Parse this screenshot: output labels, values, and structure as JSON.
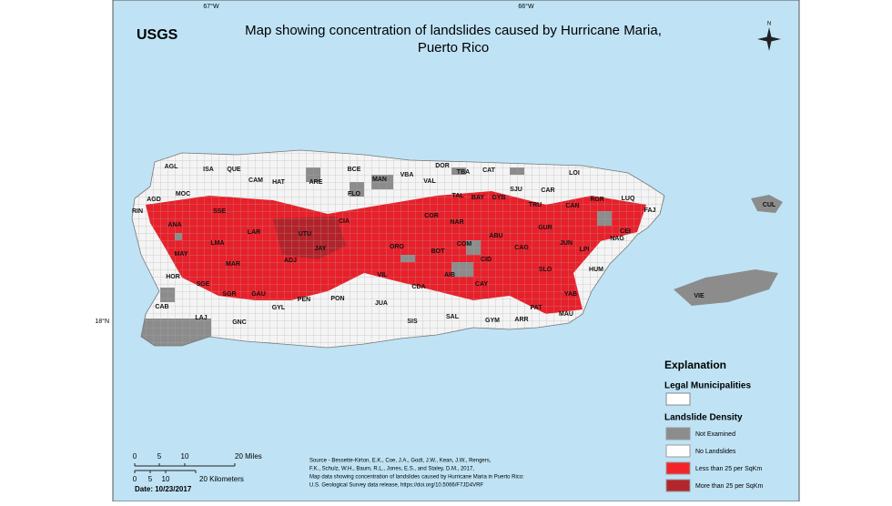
{
  "header": {
    "logo": "USGS",
    "title_line1": "Map showing concentration of landslides caused by Hurricane Maria,",
    "title_line2": "Puerto Rico"
  },
  "graticule": {
    "lon1": "67°W",
    "lon2": "66°W",
    "lat": "18°N"
  },
  "north": "N",
  "municipalities": [
    "AGL",
    "ISA",
    "QUE",
    "CAM",
    "HAT",
    "ARE",
    "BCE",
    "MAN",
    "VBA",
    "DOR",
    "TBA",
    "CAT",
    "LOI",
    "AGD",
    "MOC",
    "FLO",
    "VAL",
    "RIN",
    "ANA",
    "SSE",
    "LAR",
    "UTU",
    "CIA",
    "TAL",
    "BAY",
    "GYB",
    "SJU",
    "CAR",
    "TRU",
    "CAN",
    "RGR",
    "LUQ",
    "FAJ",
    "CUL",
    "COR",
    "NAR",
    "GUR",
    "NAG",
    "CEI",
    "LMA",
    "MAY",
    "JAY",
    "ORO",
    "BOT",
    "COM",
    "ABU",
    "JUN",
    "LPI",
    "CAG",
    "MAR",
    "ADJ",
    "CID",
    "SLO",
    "HUM",
    "HOR",
    "SGE",
    "VIL",
    "AIB",
    "CDA",
    "CAY",
    "VIE",
    "SGR",
    "GAU",
    "PEN",
    "PON",
    "JUA",
    "YAB",
    "PAT",
    "MAU",
    "CAB",
    "GYL",
    "LAJ",
    "GNC",
    "SIS",
    "SAL",
    "GYM",
    "ARR"
  ],
  "legend": {
    "title": "Explanation",
    "section1": "Legal Municipalities",
    "section2": "Landslide Density",
    "items": [
      "Not Examined",
      "No Landslides",
      "Less than 25 per SqKm",
      "More than 25 per SqKm"
    ]
  },
  "scale": {
    "miles": [
      "0",
      "5",
      "10",
      "20 Miles"
    ],
    "km": [
      "0",
      "5",
      "10",
      "20 Kilometers"
    ],
    "date": "Date: 10/23/2017"
  },
  "credit": [
    "Source - Bessette-Kirton, E.K., Coe, J.A., Godt, J.W., Kean, J.W., Rengers,",
    "F.K., Schulz, W.H., Baum, R.L., Jones, E.S., and Staley, D.M., 2017,",
    "Map data showing concentration of landslides caused by Hurricane Maria in Puerto Rico:",
    "U.S. Geological Survey data release, https://doi.org/10.5066/F7JD4VRF"
  ]
}
